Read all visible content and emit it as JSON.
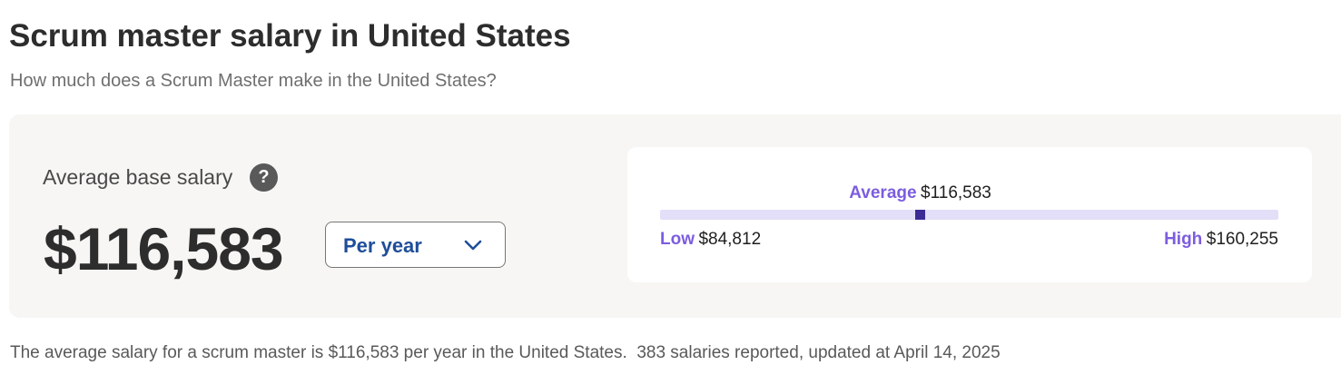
{
  "header": {
    "title": "Scrum master salary in United States",
    "subtitle": "How much does a Scrum Master make in the United States?"
  },
  "summary": {
    "label": "Average base salary",
    "help_icon": "?",
    "amount": "$116,583",
    "period_select": "Per year"
  },
  "range": {
    "average": {
      "label": "Average",
      "text": "$116,583",
      "value": 116583
    },
    "low": {
      "label": "Low",
      "text": "$84,812",
      "value": 84812
    },
    "high": {
      "label": "High",
      "text": "$160,255",
      "value": 160255
    }
  },
  "footer": {
    "text": "The average salary for a scrum master is $116,583 per year in the United States.  383 salaries reported, updated at April 14, 2025"
  }
}
